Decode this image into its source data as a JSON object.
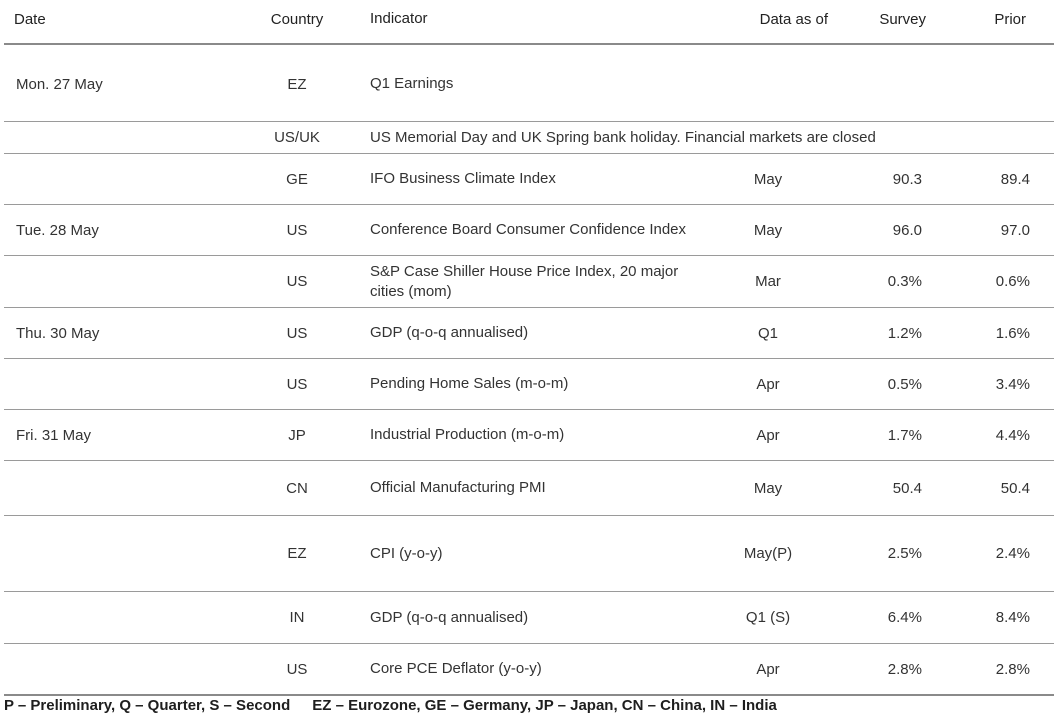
{
  "headers": {
    "date": "Date",
    "country": "Country",
    "indicator": "Indicator",
    "data_as_of": "Data as of",
    "survey": "Survey",
    "prior": "Prior"
  },
  "rows": [
    {
      "date": "Mon. 27 May",
      "country": "EZ",
      "indicator": "Q1 Earnings",
      "data_as_of": "",
      "survey": "",
      "prior": ""
    },
    {
      "date": "",
      "country": "US/UK",
      "indicator": "US Memorial Day and UK Spring bank holiday. Financial markets are closed",
      "data_as_of": "",
      "survey": "",
      "prior": ""
    },
    {
      "date": "",
      "country": "GE",
      "indicator": "IFO Business Climate Index",
      "data_as_of": "May",
      "survey": "90.3",
      "prior": "89.4"
    },
    {
      "date": "Tue. 28 May",
      "country": "US",
      "indicator": "Conference Board Consumer Confidence Index",
      "data_as_of": "May",
      "survey": "96.0",
      "prior": "97.0"
    },
    {
      "date": "",
      "country": "US",
      "indicator": "S&P Case Shiller House Price Index, 20 major cities (mom)",
      "data_as_of": "Mar",
      "survey": "0.3%",
      "prior": "0.6%"
    },
    {
      "date": "Thu. 30 May",
      "country": "US",
      "indicator": "GDP (q-o-q annualised)",
      "data_as_of": "Q1",
      "survey": "1.2%",
      "prior": "1.6%"
    },
    {
      "date": "",
      "country": "US",
      "indicator": "Pending Home Sales (m-o-m)",
      "data_as_of": "Apr",
      "survey": "0.5%",
      "prior": "3.4%"
    },
    {
      "date": "Fri. 31 May",
      "country": "JP",
      "indicator": "Industrial Production (m-o-m)",
      "data_as_of": "Apr",
      "survey": "1.7%",
      "prior": "4.4%"
    },
    {
      "date": "",
      "country": "CN",
      "indicator": "Official Manufacturing PMI",
      "data_as_of": "May",
      "survey": "50.4",
      "prior": "50.4"
    },
    {
      "date": "",
      "country": "EZ",
      "indicator": "CPI (y-o-y)",
      "data_as_of": "May(P)",
      "survey": "2.5%",
      "prior": "2.4%"
    },
    {
      "date": "",
      "country": "IN",
      "indicator": "GDP (q-o-q annualised)",
      "data_as_of": "Q1 (S)",
      "survey": "6.4%",
      "prior": "8.4%"
    },
    {
      "date": "",
      "country": "US",
      "indicator": "Core PCE Deflator (y-o-y)",
      "data_as_of": "Apr",
      "survey": "2.8%",
      "prior": "2.8%"
    }
  ],
  "footer": {
    "abbrev_left": "P – Preliminary, Q – Quarter, S – Second",
    "abbrev_right": "EZ – Eurozone, GE – Germany, JP – Japan, CN – China, IN – India"
  }
}
